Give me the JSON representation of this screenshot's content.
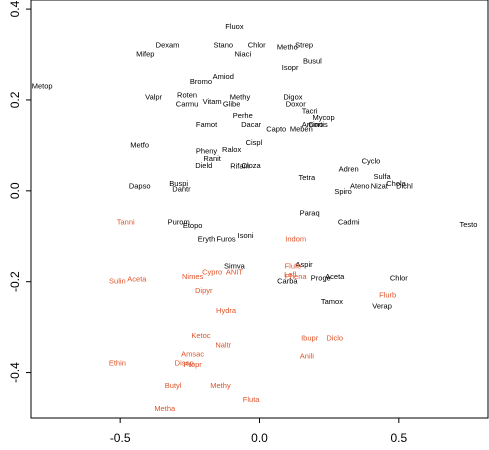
{
  "chart_data": {
    "type": "scatter",
    "title": "",
    "xlabel": "",
    "ylabel": "",
    "xlim": [
      -0.82,
      0.82
    ],
    "ylim": [
      -0.5,
      0.42
    ],
    "xticks": [
      -0.5,
      0.0,
      0.5
    ],
    "xtick_labels": [
      "-0.5",
      "0.0",
      "0.5"
    ],
    "yticks": [
      -0.4,
      -0.2,
      0.0,
      0.2,
      0.4
    ],
    "ytick_labels": [
      "-0.4",
      "-0.2",
      "0.0",
      "0.2",
      "0.4"
    ],
    "grid": false,
    "legend": false,
    "colors": {
      "black": "#000000",
      "orange": "#e0542a"
    },
    "points": [
      {
        "label": "Fluox",
        "x": -0.09,
        "y": 0.36,
        "color": "black"
      },
      {
        "label": "Dexam",
        "x": -0.33,
        "y": 0.32,
        "color": "black"
      },
      {
        "label": "Stano",
        "x": -0.13,
        "y": 0.32,
        "color": "black"
      },
      {
        "label": "Chlor",
        "x": -0.01,
        "y": 0.32,
        "color": "black"
      },
      {
        "label": "Metho",
        "x": 0.1,
        "y": 0.315,
        "color": "black"
      },
      {
        "label": "Strep",
        "x": 0.16,
        "y": 0.32,
        "color": "black"
      },
      {
        "label": "Mifep",
        "x": -0.41,
        "y": 0.3,
        "color": "black"
      },
      {
        "label": "Niaci",
        "x": -0.06,
        "y": 0.3,
        "color": "black"
      },
      {
        "label": "Busul",
        "x": 0.19,
        "y": 0.285,
        "color": "black"
      },
      {
        "label": "Isopr",
        "x": 0.11,
        "y": 0.27,
        "color": "black"
      },
      {
        "label": "Amiod",
        "x": -0.13,
        "y": 0.25,
        "color": "black"
      },
      {
        "label": "Bromo",
        "x": -0.21,
        "y": 0.24,
        "color": "black"
      },
      {
        "label": "Metop",
        "x": -0.78,
        "y": 0.23,
        "color": "black"
      },
      {
        "label": "Valpr",
        "x": -0.38,
        "y": 0.205,
        "color": "black"
      },
      {
        "label": "Roten",
        "x": -0.26,
        "y": 0.21,
        "color": "black"
      },
      {
        "label": "Vitam",
        "x": -0.17,
        "y": 0.195,
        "color": "black"
      },
      {
        "label": "Methy",
        "x": -0.07,
        "y": 0.205,
        "color": "black"
      },
      {
        "label": "Digox",
        "x": 0.12,
        "y": 0.205,
        "color": "black"
      },
      {
        "label": "Carmu",
        "x": -0.26,
        "y": 0.19,
        "color": "black"
      },
      {
        "label": "Glibe",
        "x": -0.1,
        "y": 0.19,
        "color": "black"
      },
      {
        "label": "Doxor",
        "x": 0.13,
        "y": 0.19,
        "color": "black"
      },
      {
        "label": "Tacri",
        "x": 0.18,
        "y": 0.175,
        "color": "black"
      },
      {
        "label": "Perhe",
        "x": -0.06,
        "y": 0.165,
        "color": "black"
      },
      {
        "label": "Mycop",
        "x": 0.23,
        "y": 0.16,
        "color": "black"
      },
      {
        "label": "Famot",
        "x": -0.19,
        "y": 0.145,
        "color": "black"
      },
      {
        "label": "Dacar",
        "x": -0.03,
        "y": 0.145,
        "color": "black"
      },
      {
        "label": "Amino",
        "x": 0.19,
        "y": 0.145,
        "color": "black"
      },
      {
        "label": "Cortis",
        "x": 0.21,
        "y": 0.145,
        "color": "black"
      },
      {
        "label": "Capto",
        "x": 0.06,
        "y": 0.135,
        "color": "black"
      },
      {
        "label": "Meben",
        "x": 0.15,
        "y": 0.135,
        "color": "black"
      },
      {
        "label": "Cispl",
        "x": -0.02,
        "y": 0.105,
        "color": "black"
      },
      {
        "label": "Metfo",
        "x": -0.43,
        "y": 0.1,
        "color": "black"
      },
      {
        "label": "Pheny",
        "x": -0.19,
        "y": 0.087,
        "color": "black"
      },
      {
        "label": "Ralox",
        "x": -0.1,
        "y": 0.09,
        "color": "black"
      },
      {
        "label": "Ranit",
        "x": -0.17,
        "y": 0.07,
        "color": "black"
      },
      {
        "label": "Cyclo",
        "x": 0.4,
        "y": 0.065,
        "color": "black"
      },
      {
        "label": "Dield",
        "x": -0.2,
        "y": 0.055,
        "color": "black"
      },
      {
        "label": "Rifam",
        "x": -0.07,
        "y": 0.053,
        "color": "black"
      },
      {
        "label": "Cloza",
        "x": -0.03,
        "y": 0.055,
        "color": "black"
      },
      {
        "label": "Adren",
        "x": 0.32,
        "y": 0.047,
        "color": "black"
      },
      {
        "label": "Tetra",
        "x": 0.17,
        "y": 0.028,
        "color": "black"
      },
      {
        "label": "Sulfa",
        "x": 0.44,
        "y": 0.03,
        "color": "black"
      },
      {
        "label": "Dapso",
        "x": -0.43,
        "y": 0.01,
        "color": "black"
      },
      {
        "label": "Buspi",
        "x": -0.29,
        "y": 0.015,
        "color": "black"
      },
      {
        "label": "Ateno",
        "x": 0.36,
        "y": 0.01,
        "color": "black"
      },
      {
        "label": "Nizat",
        "x": 0.43,
        "y": 0.01,
        "color": "black"
      },
      {
        "label": "Chola",
        "x": 0.49,
        "y": 0.015,
        "color": "black"
      },
      {
        "label": "Dichl",
        "x": 0.52,
        "y": 0.01,
        "color": "black"
      },
      {
        "label": "Dantr",
        "x": -0.28,
        "y": 0.003,
        "color": "black"
      },
      {
        "label": "Spiro",
        "x": 0.3,
        "y": -0.003,
        "color": "black"
      },
      {
        "label": "Paraq",
        "x": 0.18,
        "y": -0.05,
        "color": "black"
      },
      {
        "label": "Purom",
        "x": -0.29,
        "y": -0.07,
        "color": "black"
      },
      {
        "label": "Etopo",
        "x": -0.24,
        "y": -0.077,
        "color": "black"
      },
      {
        "label": "Cadmi",
        "x": 0.32,
        "y": -0.07,
        "color": "black"
      },
      {
        "label": "Testo",
        "x": 0.75,
        "y": -0.075,
        "color": "black"
      },
      {
        "label": "Isoni",
        "x": -0.05,
        "y": -0.1,
        "color": "black"
      },
      {
        "label": "Eryth",
        "x": -0.19,
        "y": -0.107,
        "color": "black"
      },
      {
        "label": "Furos",
        "x": -0.12,
        "y": -0.107,
        "color": "black"
      },
      {
        "label": "Aspir",
        "x": 0.16,
        "y": -0.163,
        "color": "black"
      },
      {
        "label": "Simva",
        "x": -0.09,
        "y": -0.167,
        "color": "black"
      },
      {
        "label": "Proge",
        "x": 0.22,
        "y": -0.193,
        "color": "black"
      },
      {
        "label": "Aceta",
        "x": 0.27,
        "y": -0.19,
        "color": "black"
      },
      {
        "label": "Chlor",
        "x": 0.5,
        "y": -0.193,
        "color": "black"
      },
      {
        "label": "Carba",
        "x": 0.1,
        "y": -0.2,
        "color": "black"
      },
      {
        "label": "Tamox",
        "x": 0.26,
        "y": -0.245,
        "color": "black"
      },
      {
        "label": "Verap",
        "x": 0.44,
        "y": -0.255,
        "color": "black"
      },
      {
        "label": "Tanni",
        "x": -0.48,
        "y": -0.07,
        "color": "orange"
      },
      {
        "label": "Indom",
        "x": 0.13,
        "y": -0.107,
        "color": "orange"
      },
      {
        "label": "Flufe",
        "x": 0.12,
        "y": -0.167,
        "color": "orange"
      },
      {
        "label": "Cypro",
        "x": -0.17,
        "y": -0.18,
        "color": "orange"
      },
      {
        "label": "ANIT",
        "x": -0.09,
        "y": -0.18,
        "color": "orange"
      },
      {
        "label": "Lefl",
        "x": 0.11,
        "y": -0.185,
        "color": "orange"
      },
      {
        "label": "Phena",
        "x": 0.13,
        "y": -0.19,
        "color": "orange"
      },
      {
        "label": "Sulin",
        "x": -0.51,
        "y": -0.2,
        "color": "orange"
      },
      {
        "label": "Aceta",
        "x": -0.44,
        "y": -0.195,
        "color": "orange"
      },
      {
        "label": "Nimes",
        "x": -0.24,
        "y": -0.19,
        "color": "orange"
      },
      {
        "label": "Dipyr",
        "x": -0.2,
        "y": -0.22,
        "color": "orange"
      },
      {
        "label": "Flurb",
        "x": 0.46,
        "y": -0.23,
        "color": "orange"
      },
      {
        "label": "Hydra",
        "x": -0.12,
        "y": -0.265,
        "color": "orange"
      },
      {
        "label": "Ketoc",
        "x": -0.21,
        "y": -0.32,
        "color": "orange"
      },
      {
        "label": "Ibupr",
        "x": 0.18,
        "y": -0.325,
        "color": "orange"
      },
      {
        "label": "Diclo",
        "x": 0.27,
        "y": -0.325,
        "color": "orange"
      },
      {
        "label": "Naltr",
        "x": -0.13,
        "y": -0.34,
        "color": "orange"
      },
      {
        "label": "Amsac",
        "x": -0.24,
        "y": -0.36,
        "color": "orange"
      },
      {
        "label": "Anili",
        "x": 0.17,
        "y": -0.365,
        "color": "orange"
      },
      {
        "label": "Ethin",
        "x": -0.51,
        "y": -0.38,
        "color": "orange"
      },
      {
        "label": "Disop",
        "x": -0.27,
        "y": -0.38,
        "color": "orange"
      },
      {
        "label": "Propr",
        "x": -0.24,
        "y": -0.383,
        "color": "orange"
      },
      {
        "label": "Methy",
        "x": -0.14,
        "y": -0.43,
        "color": "orange"
      },
      {
        "label": "Butyl",
        "x": -0.31,
        "y": -0.43,
        "color": "orange"
      },
      {
        "label": "Fluta",
        "x": -0.03,
        "y": -0.46,
        "color": "orange"
      },
      {
        "label": "Metha",
        "x": -0.34,
        "y": -0.48,
        "color": "orange"
      }
    ]
  }
}
